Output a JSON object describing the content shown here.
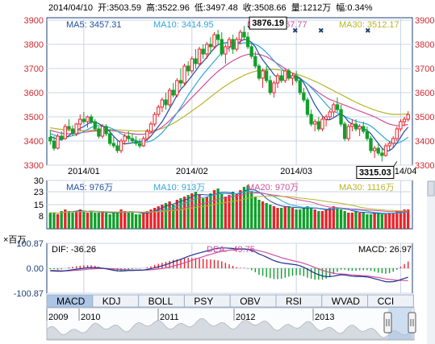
{
  "header": {
    "date": "2014/04/10",
    "open_label": "开:",
    "open": "3503.59",
    "high_label": "高:",
    "high": "3522.96",
    "low_label": "低:",
    "low": "3497.48",
    "close_label": "收:",
    "close": "3508.66",
    "volume_label": "量:",
    "volume": "1212万",
    "change_label": "幅:",
    "change": "0.34%"
  },
  "legend_price": [
    {
      "label": "MA5: 3457.31",
      "color": "#1f4fa0"
    },
    {
      "label": "MA10: 3414.95",
      "color": "#2fa7d8"
    },
    {
      "label": "MA20: 3467.77",
      "color": "#d04f9a"
    },
    {
      "label": "MA30: 3512.17",
      "color": "#b7b52a"
    }
  ],
  "legend_volume": [
    {
      "label": "MA5: 976万",
      "color": "#1f4fa0"
    },
    {
      "label": "MA10: 913万",
      "color": "#2fa7d8"
    },
    {
      "label": "MA20: 970万",
      "color": "#d04f9a"
    },
    {
      "label": "MA30: 1116万",
      "color": "#b7b52a"
    }
  ],
  "macd_legend": {
    "unit": "×百万",
    "dif": "DIF: -36.26",
    "dea": "DEA: -49.75",
    "macd": "MACD: 26.97"
  },
  "tabs": [
    "MACD",
    "KDJ",
    "BOLL",
    "PSY",
    "OBV",
    "RSI",
    "WVAD",
    "CCI"
  ],
  "active_tab": "MACD",
  "navigator_years": [
    "2009",
    "2010",
    "2011",
    "2012",
    "2013"
  ],
  "colors": {
    "up": "#e8232a",
    "down": "#119f2b",
    "grid": "#c8d4e4",
    "frame": "#1e3f73"
  },
  "chart_data": [
    {
      "type": "candlestick",
      "y_ticks": [
        3300,
        3400,
        3500,
        3600,
        3700,
        3800,
        3900
      ],
      "ylim": [
        3300,
        3910
      ],
      "x_ticks": [
        "2014/01",
        "2014/02",
        "2014/03",
        "2014/04"
      ],
      "x_tick_index": [
        9,
        38,
        66,
        94
      ],
      "annotations": [
        {
          "label": "3876.19",
          "index": 53,
          "value": 3876.19
        },
        {
          "label": "3315.03",
          "index": 93,
          "value": 3315.03
        }
      ],
      "candles": [
        [
          3415,
          3445,
          3385,
          3400
        ],
        [
          3400,
          3420,
          3360,
          3370
        ],
        [
          3370,
          3430,
          3365,
          3420
        ],
        [
          3420,
          3440,
          3400,
          3410
        ],
        [
          3410,
          3470,
          3405,
          3460
        ],
        [
          3460,
          3490,
          3440,
          3450
        ],
        [
          3450,
          3465,
          3420,
          3430
        ],
        [
          3430,
          3475,
          3420,
          3470
        ],
        [
          3470,
          3510,
          3440,
          3490
        ],
        [
          3490,
          3520,
          3470,
          3480
        ],
        [
          3480,
          3505,
          3455,
          3500
        ],
        [
          3500,
          3510,
          3470,
          3480
        ],
        [
          3480,
          3490,
          3440,
          3450
        ],
        [
          3450,
          3460,
          3410,
          3420
        ],
        [
          3420,
          3470,
          3410,
          3460
        ],
        [
          3460,
          3470,
          3420,
          3430
        ],
        [
          3430,
          3450,
          3380,
          3390
        ],
        [
          3390,
          3420,
          3370,
          3380
        ],
        [
          3380,
          3400,
          3350,
          3360
        ],
        [
          3360,
          3410,
          3350,
          3400
        ],
        [
          3400,
          3430,
          3385,
          3420
        ],
        [
          3420,
          3440,
          3395,
          3410
        ],
        [
          3410,
          3430,
          3390,
          3400
        ],
        [
          3400,
          3420,
          3380,
          3390
        ],
        [
          3390,
          3410,
          3370,
          3380
        ],
        [
          3380,
          3420,
          3375,
          3410
        ],
        [
          3410,
          3450,
          3400,
          3440
        ],
        [
          3440,
          3480,
          3430,
          3470
        ],
        [
          3470,
          3520,
          3460,
          3510
        ],
        [
          3510,
          3550,
          3500,
          3540
        ],
        [
          3540,
          3580,
          3520,
          3570
        ],
        [
          3570,
          3600,
          3530,
          3550
        ],
        [
          3550,
          3620,
          3540,
          3610
        ],
        [
          3610,
          3640,
          3580,
          3590
        ],
        [
          3590,
          3660,
          3580,
          3650
        ],
        [
          3650,
          3700,
          3620,
          3640
        ],
        [
          3640,
          3720,
          3630,
          3710
        ],
        [
          3710,
          3730,
          3670,
          3690
        ],
        [
          3690,
          3750,
          3680,
          3740
        ],
        [
          3740,
          3780,
          3700,
          3720
        ],
        [
          3720,
          3790,
          3710,
          3780
        ],
        [
          3780,
          3800,
          3740,
          3760
        ],
        [
          3760,
          3810,
          3740,
          3800
        ],
        [
          3800,
          3830,
          3760,
          3790
        ],
        [
          3790,
          3850,
          3780,
          3840
        ],
        [
          3840,
          3860,
          3800,
          3820
        ],
        [
          3820,
          3850,
          3750,
          3760
        ],
        [
          3760,
          3800,
          3720,
          3790
        ],
        [
          3790,
          3830,
          3770,
          3820
        ],
        [
          3820,
          3840,
          3760,
          3780
        ],
        [
          3780,
          3830,
          3770,
          3820
        ],
        [
          3820,
          3860,
          3800,
          3850
        ],
        [
          3850,
          3876,
          3820,
          3830
        ],
        [
          3830,
          3850,
          3780,
          3790
        ],
        [
          3790,
          3810,
          3740,
          3750
        ],
        [
          3750,
          3770,
          3700,
          3710
        ],
        [
          3710,
          3720,
          3650,
          3660
        ],
        [
          3660,
          3700,
          3620,
          3690
        ],
        [
          3690,
          3710,
          3640,
          3650
        ],
        [
          3650,
          3670,
          3590,
          3600
        ],
        [
          3600,
          3650,
          3580,
          3640
        ],
        [
          3640,
          3680,
          3620,
          3670
        ],
        [
          3670,
          3690,
          3640,
          3650
        ],
        [
          3650,
          3700,
          3640,
          3690
        ],
        [
          3690,
          3700,
          3650,
          3660
        ],
        [
          3660,
          3680,
          3630,
          3670
        ],
        [
          3670,
          3690,
          3640,
          3650
        ],
        [
          3650,
          3660,
          3590,
          3600
        ],
        [
          3600,
          3620,
          3560,
          3570
        ],
        [
          3570,
          3580,
          3500,
          3510
        ],
        [
          3510,
          3530,
          3460,
          3470
        ],
        [
          3470,
          3490,
          3440,
          3480
        ],
        [
          3480,
          3500,
          3440,
          3450
        ],
        [
          3450,
          3500,
          3440,
          3490
        ],
        [
          3490,
          3510,
          3460,
          3500
        ],
        [
          3500,
          3530,
          3490,
          3520
        ],
        [
          3520,
          3560,
          3500,
          3550
        ],
        [
          3550,
          3580,
          3520,
          3530
        ],
        [
          3530,
          3550,
          3460,
          3470
        ],
        [
          3470,
          3480,
          3400,
          3410
        ],
        [
          3410,
          3470,
          3400,
          3460
        ],
        [
          3460,
          3490,
          3440,
          3470
        ],
        [
          3470,
          3490,
          3440,
          3450
        ],
        [
          3450,
          3470,
          3420,
          3460
        ],
        [
          3460,
          3480,
          3430,
          3440
        ],
        [
          3440,
          3460,
          3400,
          3410
        ],
        [
          3410,
          3420,
          3350,
          3360
        ],
        [
          3360,
          3380,
          3330,
          3370
        ],
        [
          3370,
          3390,
          3340,
          3350
        ],
        [
          3350,
          3370,
          3315,
          3340
        ],
        [
          3340,
          3390,
          3335,
          3380
        ],
        [
          3380,
          3400,
          3360,
          3390
        ],
        [
          3390,
          3420,
          3370,
          3410
        ],
        [
          3410,
          3460,
          3400,
          3450
        ],
        [
          3450,
          3490,
          3440,
          3480
        ],
        [
          3480,
          3500,
          3460,
          3490
        ],
        [
          3490,
          3523,
          3480,
          3509
        ]
      ],
      "ma5": [
        3420,
        3412,
        3408,
        3405,
        3412,
        3422,
        3434,
        3444,
        3452,
        3460,
        3470,
        3478,
        3478,
        3472,
        3462,
        3452,
        3438,
        3420,
        3404,
        3392,
        3388,
        3390,
        3392,
        3394,
        3396,
        3398,
        3406,
        3420,
        3440,
        3460,
        3480,
        3506,
        3534,
        3560,
        3590,
        3614,
        3630,
        3650,
        3670,
        3690,
        3712,
        3728,
        3746,
        3766,
        3784,
        3798,
        3804,
        3806,
        3808,
        3806,
        3800,
        3812,
        3820,
        3818,
        3808,
        3790,
        3760,
        3735,
        3716,
        3696,
        3675,
        3660,
        3655,
        3658,
        3662,
        3665,
        3666,
        3660,
        3640,
        3612,
        3580,
        3550,
        3526,
        3504,
        3488,
        3488,
        3496,
        3506,
        3514,
        3500,
        3480,
        3470,
        3464,
        3460,
        3452,
        3444,
        3430,
        3410,
        3390,
        3370,
        3358,
        3360,
        3372,
        3392,
        3416,
        3440,
        3457
      ],
      "ma10": [
        3430,
        3425,
        3420,
        3416,
        3416,
        3418,
        3422,
        3426,
        3432,
        3440,
        3448,
        3456,
        3462,
        3464,
        3462,
        3460,
        3455,
        3448,
        3440,
        3430,
        3422,
        3414,
        3408,
        3402,
        3398,
        3396,
        3396,
        3400,
        3408,
        3420,
        3434,
        3452,
        3472,
        3494,
        3516,
        3540,
        3564,
        3590,
        3612,
        3634,
        3656,
        3676,
        3694,
        3712,
        3730,
        3748,
        3764,
        3776,
        3786,
        3795,
        3800,
        3804,
        3806,
        3806,
        3804,
        3800,
        3792,
        3780,
        3766,
        3750,
        3732,
        3716,
        3700,
        3686,
        3676,
        3668,
        3662,
        3656,
        3648,
        3636,
        3620,
        3604,
        3588,
        3570,
        3552,
        3536,
        3524,
        3516,
        3510,
        3502,
        3494,
        3488,
        3482,
        3478,
        3474,
        3470,
        3462,
        3450,
        3436,
        3422,
        3408,
        3398,
        3392,
        3390,
        3396,
        3405,
        3415
      ],
      "ma20": [
        3445,
        3440,
        3436,
        3432,
        3430,
        3430,
        3431,
        3432,
        3434,
        3436,
        3438,
        3440,
        3441,
        3442,
        3443,
        3444,
        3444,
        3442,
        3440,
        3437,
        3434,
        3432,
        3430,
        3428,
        3428,
        3428,
        3430,
        3434,
        3440,
        3448,
        3458,
        3470,
        3484,
        3500,
        3516,
        3532,
        3548,
        3564,
        3580,
        3596,
        3612,
        3628,
        3644,
        3660,
        3674,
        3688,
        3700,
        3712,
        3722,
        3732,
        3740,
        3748,
        3754,
        3758,
        3760,
        3760,
        3758,
        3754,
        3748,
        3740,
        3730,
        3720,
        3710,
        3700,
        3690,
        3680,
        3670,
        3660,
        3648,
        3636,
        3624,
        3612,
        3600,
        3590,
        3580,
        3572,
        3566,
        3560,
        3554,
        3548,
        3542,
        3536,
        3530,
        3524,
        3518,
        3512,
        3506,
        3500,
        3492,
        3484,
        3476,
        3470,
        3466,
        3464,
        3464,
        3466,
        3468
      ],
      "ma30": [
        3455,
        3452,
        3450,
        3448,
        3446,
        3445,
        3444,
        3443,
        3443,
        3443,
        3444,
        3444,
        3445,
        3445,
        3446,
        3446,
        3446,
        3446,
        3446,
        3445,
        3444,
        3443,
        3442,
        3441,
        3441,
        3441,
        3442,
        3443,
        3445,
        3448,
        3452,
        3458,
        3465,
        3473,
        3482,
        3492,
        3502,
        3513,
        3524,
        3535,
        3546,
        3558,
        3570,
        3582,
        3594,
        3606,
        3618,
        3628,
        3638,
        3648,
        3656,
        3664,
        3672,
        3678,
        3684,
        3688,
        3692,
        3694,
        3695,
        3696,
        3696,
        3695,
        3693,
        3690,
        3686,
        3682,
        3677,
        3672,
        3666,
        3660,
        3654,
        3647,
        3640,
        3632,
        3624,
        3616,
        3608,
        3600,
        3592,
        3584,
        3576,
        3568,
        3560,
        3553,
        3546,
        3540,
        3534,
        3528,
        3523,
        3519,
        3515,
        3512,
        3510,
        3510,
        3510,
        3511,
        3512
      ]
    },
    {
      "type": "bar",
      "name": "volume",
      "y_ticks": [
        8,
        15,
        23,
        30
      ],
      "ylim": [
        0,
        30
      ],
      "values": [
        10,
        10,
        9,
        11,
        12,
        11,
        10,
        11,
        12,
        11,
        10,
        11,
        10,
        10,
        11,
        10,
        9,
        10,
        10,
        12,
        11,
        10,
        10,
        9,
        9,
        10,
        11,
        12,
        13,
        14,
        15,
        16,
        17,
        15,
        18,
        19,
        20,
        21,
        22,
        23,
        21,
        19,
        20,
        22,
        24,
        25,
        22,
        20,
        21,
        23,
        22,
        24,
        26,
        27,
        23,
        20,
        18,
        17,
        16,
        15,
        14,
        13,
        13,
        14,
        14,
        13,
        12,
        12,
        13,
        14,
        13,
        12,
        11,
        11,
        12,
        13,
        14,
        13,
        12,
        11,
        10,
        10,
        11,
        10,
        10,
        9,
        9,
        10,
        10,
        9,
        9,
        10,
        10,
        11,
        11,
        12,
        12
      ]
    },
    {
      "type": "macd",
      "y_ticks": [
        100.87,
        0.0,
        -100.87
      ],
      "ylim": [
        -100.87,
        100.87
      ],
      "dif": [
        -10,
        -11,
        -12,
        -12,
        -10,
        -8,
        -6,
        -4,
        -2,
        0,
        2,
        3,
        3,
        2,
        0,
        -2,
        -5,
        -8,
        -10,
        -11,
        -10,
        -9,
        -9,
        -8,
        -8,
        -7,
        -5,
        -2,
        2,
        6,
        10,
        15,
        20,
        26,
        31,
        36,
        42,
        48,
        53,
        58,
        62,
        66,
        70,
        74,
        78,
        81,
        82,
        82,
        81,
        80,
        78,
        78,
        78,
        76,
        72,
        66,
        58,
        52,
        45,
        38,
        31,
        26,
        22,
        20,
        18,
        16,
        14,
        10,
        4,
        -4,
        -12,
        -20,
        -26,
        -31,
        -34,
        -34,
        -32,
        -29,
        -26,
        -27,
        -30,
        -32,
        -33,
        -33,
        -34,
        -35,
        -38,
        -42,
        -46,
        -50,
        -54,
        -55,
        -54,
        -51,
        -46,
        -41,
        -36
      ],
      "dea": [
        -8,
        -9,
        -9,
        -10,
        -10,
        -10,
        -9,
        -8,
        -7,
        -6,
        -4,
        -3,
        -2,
        -1,
        -1,
        -1,
        -2,
        -3,
        -4,
        -5,
        -6,
        -6,
        -7,
        -7,
        -7,
        -7,
        -7,
        -6,
        -5,
        -3,
        -1,
        2,
        5,
        9,
        13,
        17,
        22,
        27,
        32,
        37,
        42,
        47,
        52,
        56,
        61,
        65,
        68,
        71,
        73,
        75,
        76,
        77,
        77,
        77,
        76,
        74,
        71,
        67,
        63,
        58,
        53,
        48,
        43,
        39,
        35,
        31,
        28,
        24,
        20,
        15,
        9,
        3,
        -3,
        -8,
        -13,
        -17,
        -20,
        -22,
        -23,
        -24,
        -25,
        -27,
        -28,
        -29,
        -30,
        -31,
        -33,
        -35,
        -37,
        -40,
        -43,
        -45,
        -47,
        -48,
        -49,
        -49.5,
        -49.75
      ]
    }
  ]
}
